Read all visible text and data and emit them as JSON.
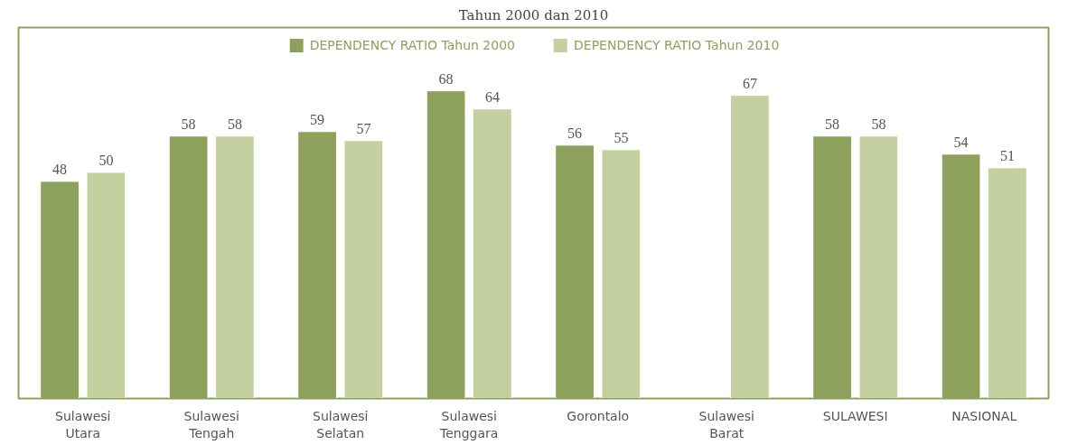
{
  "chart_data": {
    "type": "bar",
    "title": "Tahun 2000 dan 2010",
    "categories": [
      "Sulawesi\nUtara",
      "Sulawesi\nTengah",
      "Sulawesi\nSelatan",
      "Sulawesi\nTenggara",
      "Gorontalo",
      "Sulawesi\nBarat",
      "SULAWESI",
      "NASIONAL"
    ],
    "series": [
      {
        "name": "DEPENDENCY RATIO Tahun 2000",
        "color": "#8da15c",
        "values": [
          48,
          58,
          59,
          68,
          56,
          null,
          58,
          54
        ]
      },
      {
        "name": "DEPENDENCY RATIO Tahun 2010",
        "color": "#c5d0a0",
        "values": [
          50,
          58,
          57,
          64,
          55,
          67,
          58,
          51
        ]
      }
    ],
    "ylim": [
      0,
      82
    ],
    "tick_labels": "x",
    "data_labels": true,
    "legend": "top",
    "grid": false
  }
}
